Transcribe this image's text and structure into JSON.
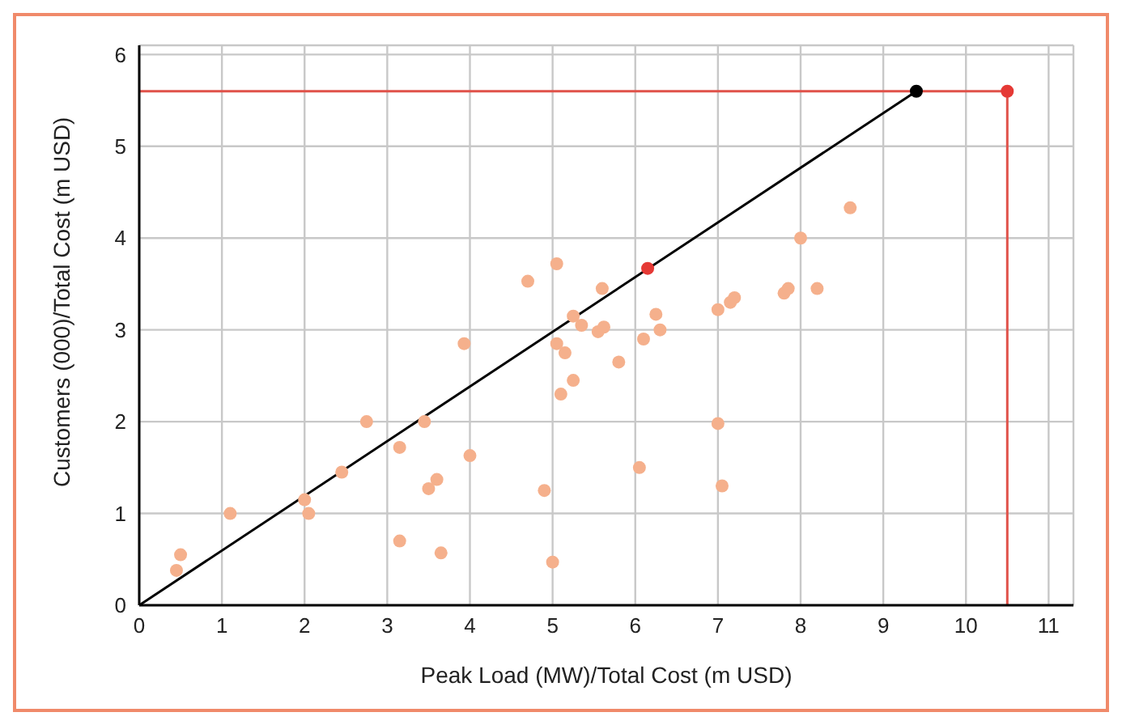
{
  "chart_data": {
    "type": "scatter",
    "xlabel": "Peak Load (MW)/Total Cost (m USD)",
    "ylabel": "Customers (000)/Total Cost (m USD)",
    "xlim": [
      0,
      11.3
    ],
    "ylim": [
      0,
      6.1
    ],
    "xticks": [
      0,
      1,
      2,
      3,
      4,
      5,
      6,
      7,
      8,
      9,
      10,
      11
    ],
    "yticks": [
      0,
      1,
      2,
      3,
      4,
      5,
      6
    ],
    "grid": true,
    "marker": "circle",
    "series": [
      {
        "color": "#f5b08c",
        "x": [
          0.45,
          0.5,
          1.1,
          2.0,
          2.05,
          2.45,
          2.75,
          3.15,
          3.15,
          3.45,
          3.5,
          3.6,
          3.65,
          3.93,
          4.0,
          4.7,
          4.9,
          5.0,
          5.05,
          5.05,
          5.1,
          5.15,
          5.25,
          5.25,
          5.35,
          5.55,
          5.6,
          5.62,
          5.8,
          6.05,
          6.1,
          6.25,
          6.3,
          7.0,
          7.0,
          7.05,
          7.15,
          7.2,
          7.8,
          7.85,
          8.0,
          8.2,
          8.6
        ],
        "values": [
          0.38,
          0.55,
          1.0,
          1.15,
          1.0,
          1.45,
          2.0,
          1.72,
          0.7,
          2.0,
          1.27,
          1.37,
          0.57,
          2.85,
          1.63,
          3.53,
          1.25,
          0.47,
          3.72,
          2.85,
          2.3,
          2.75,
          3.15,
          2.45,
          3.05,
          2.98,
          3.45,
          3.03,
          2.65,
          1.5,
          2.9,
          3.17,
          3.0,
          3.22,
          1.98,
          1.3,
          3.3,
          3.35,
          3.4,
          3.45,
          4.0,
          3.45,
          4.33
        ]
      },
      {
        "type": "line",
        "color": "#000000",
        "marker": "none",
        "x": [
          0,
          9.4
        ],
        "values": [
          0,
          5.6
        ]
      },
      {
        "type": "scatter",
        "color": "#000000",
        "x": [
          9.4
        ],
        "values": [
          5.6
        ]
      },
      {
        "type": "line",
        "color": "#e0524a",
        "marker": "none",
        "x": [
          0,
          10.5,
          10.5
        ],
        "values": [
          5.6,
          5.6,
          0
        ]
      },
      {
        "type": "scatter",
        "color": "#e53935",
        "x": [
          6.15,
          10.5
        ],
        "values": [
          3.67,
          5.6
        ]
      }
    ]
  }
}
